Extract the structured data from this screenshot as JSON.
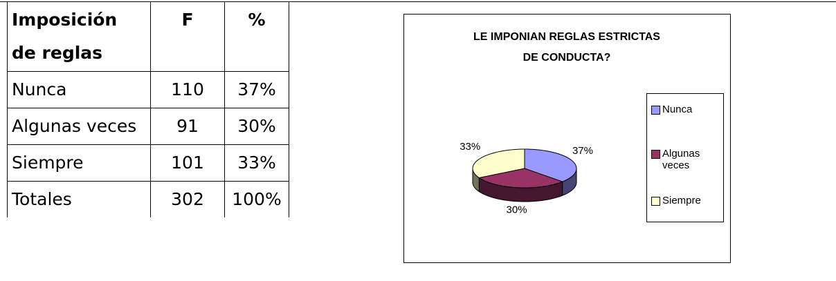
{
  "table": {
    "header": [
      "Imposición de reglas",
      "F",
      "%"
    ],
    "rows": [
      [
        "Nunca",
        "110",
        "37%"
      ],
      [
        "Algunas veces",
        "91",
        "30%"
      ],
      [
        "Siempre",
        "101",
        "33%"
      ],
      [
        "Totales",
        "302",
        "100%"
      ]
    ]
  },
  "chart_data": {
    "type": "pie",
    "title": "LE IMPONIAN REGLAS ESTRICTAS DE CONDUCTA?",
    "categories": [
      "Nunca",
      "Algunas veces",
      "Siempre"
    ],
    "values": [
      37,
      30,
      33
    ],
    "value_labels": [
      "37%",
      "30%",
      "33%"
    ],
    "colors": [
      "#9999ff",
      "#993366",
      "#ffffcc"
    ],
    "legend": "right"
  }
}
